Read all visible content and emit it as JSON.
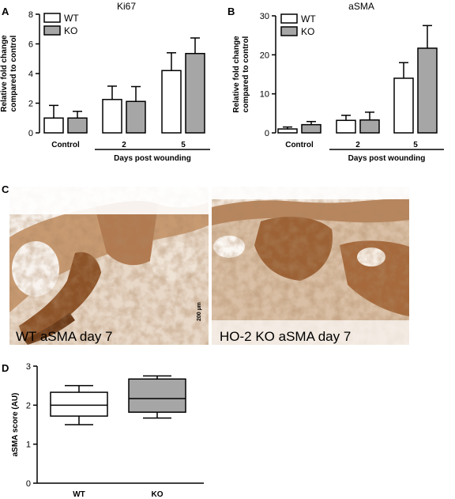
{
  "panels": {
    "A": "A",
    "B": "B",
    "C": "C",
    "D": "D"
  },
  "chart_data": [
    {
      "id": "A",
      "type": "bar",
      "title": "Ki67",
      "ylabel": "Relative fold change compared to control",
      "ylabel_lines": [
        "Relative fold change",
        "compared to control"
      ],
      "ylim": [
        0,
        8
      ],
      "yticks": [
        0,
        2,
        4,
        6,
        8
      ],
      "categories": [
        "Control",
        "2",
        "5"
      ],
      "group_label": "Days post wounding",
      "legend": [
        "WT",
        "KO"
      ],
      "series": [
        {
          "name": "WT",
          "color": "#ffffff",
          "values": [
            1.0,
            2.25,
            4.2
          ],
          "errors": [
            0.85,
            0.9,
            1.2
          ]
        },
        {
          "name": "KO",
          "color": "#a6a6a6",
          "values": [
            1.0,
            2.12,
            5.35
          ],
          "errors": [
            0.45,
            1.0,
            1.05
          ]
        }
      ]
    },
    {
      "id": "B",
      "type": "bar",
      "title": "aSMA",
      "ylabel": "Relative fold change compared to control",
      "ylabel_lines": [
        "Relative fold change",
        "compared to control"
      ],
      "ylim": [
        0,
        30
      ],
      "yticks": [
        0,
        10,
        20,
        30
      ],
      "categories": [
        "Control",
        "2",
        "5"
      ],
      "group_label": "Days post wounding",
      "legend": [
        "WT",
        "KO"
      ],
      "series": [
        {
          "name": "WT",
          "color": "#ffffff",
          "values": [
            1.0,
            3.2,
            14.0
          ],
          "errors": [
            0.5,
            1.3,
            4.0
          ]
        },
        {
          "name": "KO",
          "color": "#a6a6a6",
          "values": [
            2.1,
            3.3,
            21.7
          ],
          "errors": [
            0.8,
            2.0,
            5.8
          ]
        }
      ]
    },
    {
      "id": "D",
      "type": "box",
      "ylabel": "aSMA score (AU)",
      "ylim": [
        0,
        3
      ],
      "yticks": [
        0,
        1,
        2,
        3
      ],
      "categories": [
        "WT",
        "KO"
      ],
      "boxes": [
        {
          "name": "WT",
          "color": "#ffffff",
          "min": 1.5,
          "q1": 1.72,
          "median": 2.0,
          "q3": 2.33,
          "max": 2.5
        },
        {
          "name": "KO",
          "color": "#a6a6a6",
          "min": 1.67,
          "q1": 1.82,
          "median": 2.17,
          "q3": 2.67,
          "max": 2.75
        }
      ]
    }
  ],
  "images": {
    "left_caption": "WT aSMA day 7",
    "right_caption": "HO-2 KO aSMA day 7",
    "scale_bar": "200 µm"
  }
}
